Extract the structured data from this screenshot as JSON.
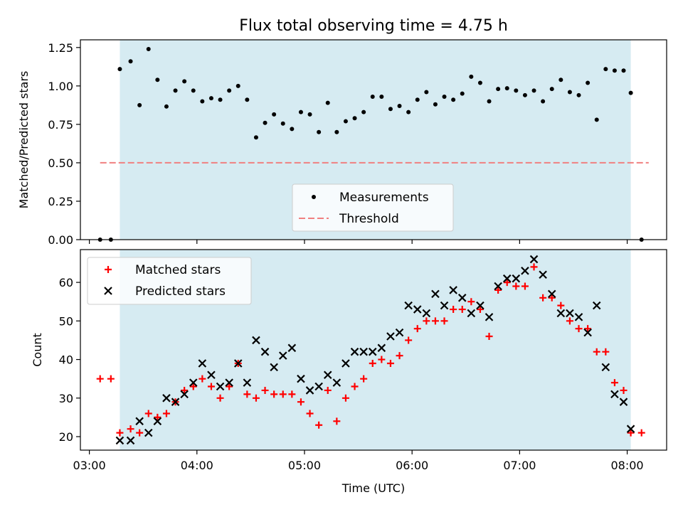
{
  "chart_data": [
    {
      "type": "scatter",
      "title": "Flux total observing time = 4.75 h",
      "xlabel": "",
      "ylabel": "Matched/Predicted stars",
      "xlim": [
        "02:55",
        "08:22"
      ],
      "ylim": [
        0,
        1.3
      ],
      "yticks": [
        0.0,
        0.25,
        0.5,
        0.75,
        1.0,
        1.25
      ],
      "ytick_labels": [
        "0.00",
        "0.25",
        "0.50",
        "0.75",
        "1.00",
        "1.25"
      ],
      "shaded_region": {
        "start": "03:17",
        "end": "08:02",
        "color": "#add8e6"
      },
      "threshold": {
        "name": "Threshold",
        "y": 0.5,
        "x_start": "03:06",
        "x_end": "08:12",
        "color": "#f08080",
        "style": "dashed"
      },
      "legend_position": "lower center",
      "series": [
        {
          "name": "Measurements",
          "color": "#000000",
          "marker": "dot",
          "x": [
            "03:06",
            "03:12",
            "03:17",
            "03:23",
            "03:28",
            "03:33",
            "03:38",
            "03:43",
            "03:48",
            "03:53",
            "03:58",
            "04:03",
            "04:08",
            "04:13",
            "04:18",
            "04:23",
            "04:28",
            "04:33",
            "04:38",
            "04:43",
            "04:48",
            "04:53",
            "04:58",
            "05:03",
            "05:08",
            "05:13",
            "05:18",
            "05:23",
            "05:28",
            "05:33",
            "05:38",
            "05:43",
            "05:48",
            "05:53",
            "05:58",
            "06:03",
            "06:08",
            "06:13",
            "06:18",
            "06:23",
            "06:28",
            "06:33",
            "06:38",
            "06:43",
            "06:48",
            "06:53",
            "06:58",
            "07:03",
            "07:08",
            "07:13",
            "07:18",
            "07:23",
            "07:28",
            "07:33",
            "07:38",
            "07:43",
            "07:48",
            "07:53",
            "07:58",
            "08:02",
            "08:08"
          ],
          "y": [
            0.0,
            0.0,
            1.11,
            1.16,
            0.875,
            1.24,
            1.04,
            0.866,
            0.97,
            1.03,
            0.97,
            0.9,
            0.92,
            0.91,
            0.97,
            1.0,
            0.91,
            0.665,
            0.76,
            0.815,
            0.755,
            0.72,
            0.83,
            0.815,
            0.7,
            0.89,
            0.7,
            0.77,
            0.79,
            0.83,
            0.93,
            0.93,
            0.85,
            0.87,
            0.83,
            0.91,
            0.96,
            0.88,
            0.93,
            0.91,
            0.95,
            1.06,
            1.02,
            0.9,
            0.98,
            0.985,
            0.97,
            0.94,
            0.97,
            0.9,
            0.98,
            1.04,
            0.96,
            0.94,
            1.02,
            0.78,
            1.11,
            1.1,
            1.1,
            0.955,
            0.0
          ]
        }
      ]
    },
    {
      "type": "scatter",
      "title": "",
      "xlabel": "Time (UTC)",
      "ylabel": "Count",
      "xlim": [
        "02:55",
        "08:22"
      ],
      "ylim": [
        16.5,
        68.5
      ],
      "yticks": [
        20,
        30,
        40,
        50,
        60
      ],
      "ytick_labels": [
        "20",
        "30",
        "40",
        "50",
        "60"
      ],
      "xticks": [
        "03:00",
        "04:00",
        "05:00",
        "06:00",
        "07:00",
        "08:00"
      ],
      "xtick_labels": [
        "03:00",
        "04:00",
        "05:00",
        "06:00",
        "07:00",
        "08:00"
      ],
      "shaded_region": {
        "start": "03:17",
        "end": "08:02",
        "color": "#add8e6"
      },
      "legend_position": "upper left",
      "series": [
        {
          "name": "Matched stars",
          "color": "#ff0000",
          "marker": "plus",
          "x": [
            "03:06",
            "03:12",
            "03:17",
            "03:23",
            "03:28",
            "03:33",
            "03:38",
            "03:43",
            "03:48",
            "03:53",
            "03:58",
            "04:03",
            "04:08",
            "04:13",
            "04:18",
            "04:23",
            "04:28",
            "04:33",
            "04:38",
            "04:43",
            "04:48",
            "04:53",
            "04:58",
            "05:03",
            "05:08",
            "05:13",
            "05:18",
            "05:23",
            "05:28",
            "05:33",
            "05:38",
            "05:43",
            "05:48",
            "05:53",
            "05:58",
            "06:03",
            "06:08",
            "06:13",
            "06:18",
            "06:23",
            "06:28",
            "06:33",
            "06:38",
            "06:43",
            "06:48",
            "06:53",
            "06:58",
            "07:03",
            "07:08",
            "07:13",
            "07:18",
            "07:23",
            "07:28",
            "07:33",
            "07:38",
            "07:43",
            "07:48",
            "07:53",
            "07:58",
            "08:02",
            "08:08"
          ],
          "y": [
            35,
            35,
            21,
            22,
            21,
            26,
            25,
            26,
            29,
            32,
            33,
            35,
            33,
            30,
            33,
            39,
            31,
            30,
            32,
            31,
            31,
            31,
            29,
            26,
            23,
            32,
            24,
            30,
            33,
            35,
            39,
            40,
            39,
            41,
            45,
            48,
            50,
            50,
            50,
            53,
            53,
            55,
            53,
            46,
            58,
            60,
            59,
            59,
            64,
            56,
            56,
            54,
            50,
            48,
            48,
            42,
            42,
            34,
            32,
            21,
            21
          ]
        },
        {
          "name": "Predicted stars",
          "color": "#000000",
          "marker": "x",
          "x": [
            "03:17",
            "03:23",
            "03:28",
            "03:33",
            "03:38",
            "03:43",
            "03:48",
            "03:53",
            "03:58",
            "04:03",
            "04:08",
            "04:13",
            "04:18",
            "04:23",
            "04:28",
            "04:33",
            "04:38",
            "04:43",
            "04:48",
            "04:53",
            "04:58",
            "05:03",
            "05:08",
            "05:13",
            "05:18",
            "05:23",
            "05:28",
            "05:33",
            "05:38",
            "05:43",
            "05:48",
            "05:53",
            "05:58",
            "06:03",
            "06:08",
            "06:13",
            "06:18",
            "06:23",
            "06:28",
            "06:33",
            "06:38",
            "06:43",
            "06:48",
            "06:53",
            "06:58",
            "07:03",
            "07:08",
            "07:13",
            "07:18",
            "07:23",
            "07:28",
            "07:33",
            "07:38",
            "07:43",
            "07:48",
            "07:53",
            "07:58",
            "08:02"
          ],
          "y": [
            19,
            19,
            24,
            21,
            24,
            30,
            29,
            31,
            34,
            39,
            36,
            33,
            34,
            39,
            34,
            45,
            42,
            38,
            41,
            43,
            35,
            32,
            33,
            36,
            34,
            39,
            42,
            42,
            42,
            43,
            46,
            47,
            54,
            53,
            52,
            57,
            54,
            58,
            56,
            52,
            54,
            51,
            59,
            61,
            61,
            63,
            66,
            62,
            57,
            52,
            52,
            51,
            47,
            54,
            38,
            31,
            29,
            22
          ]
        }
      ]
    }
  ]
}
